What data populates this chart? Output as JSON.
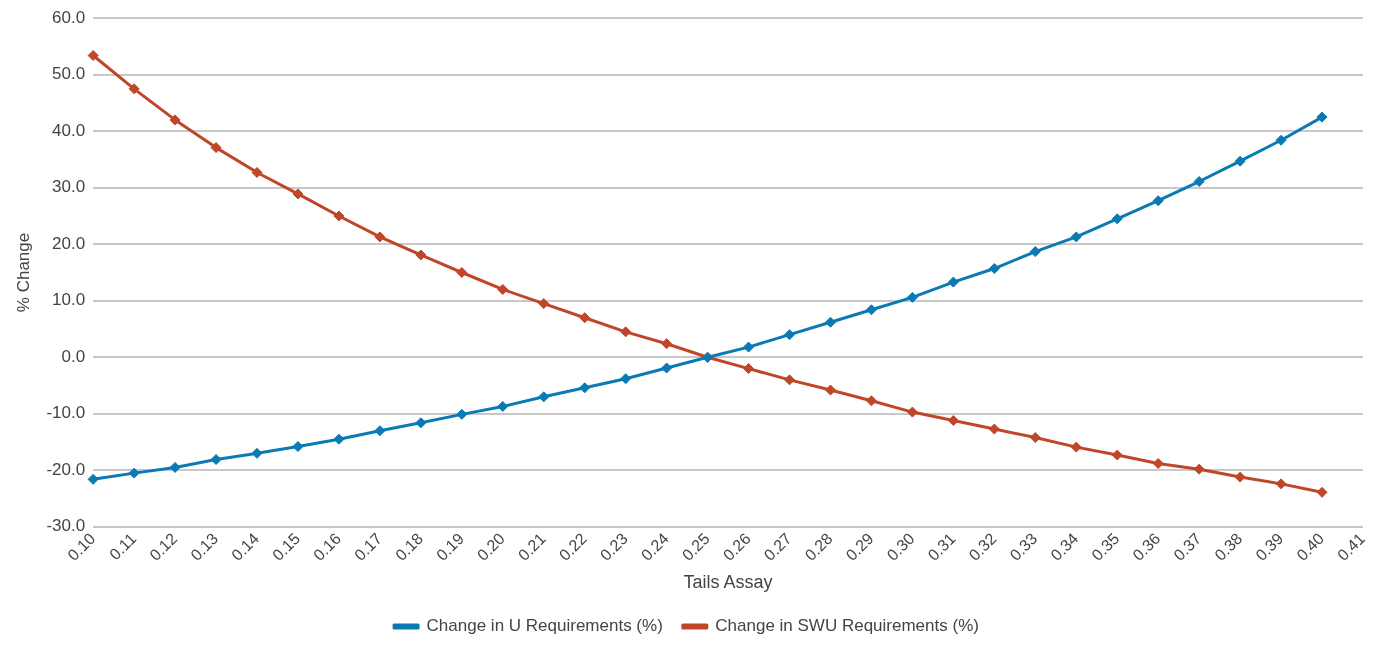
{
  "chart_data": {
    "type": "line",
    "xlabel": "Tails Assay",
    "ylabel": "% Change",
    "categories": [
      "0.10",
      "0.11",
      "0.12",
      "0.13",
      "0.14",
      "0.15",
      "0.16",
      "0.17",
      "0.18",
      "0.19",
      "0.20",
      "0.21",
      "0.22",
      "0.23",
      "0.24",
      "0.25",
      "0.26",
      "0.27",
      "0.28",
      "0.29",
      "0.30",
      "0.31",
      "0.32",
      "0.33",
      "0.34",
      "0.35",
      "0.36",
      "0.37",
      "0.38",
      "0.39",
      "0.40",
      "0.41"
    ],
    "series": [
      {
        "name": "Change in U Requirements (%)",
        "color": "#0a7ab5",
        "values": [
          -21.6,
          -20.5,
          -19.5,
          -18.1,
          -17.0,
          -15.8,
          -14.5,
          -13.0,
          -11.6,
          -10.1,
          -8.7,
          -7.0,
          -5.4,
          -3.8,
          -1.9,
          0.0,
          1.8,
          4.0,
          6.2,
          8.4,
          10.6,
          13.3,
          15.7,
          18.7,
          21.3,
          24.5,
          27.7,
          31.1,
          34.7,
          38.4,
          42.5,
          null
        ]
      },
      {
        "name": "Change in SWU Requirements (%)",
        "color": "#c0462a",
        "values": [
          53.4,
          47.5,
          42.0,
          37.1,
          32.7,
          28.9,
          25.0,
          21.3,
          18.1,
          15.0,
          12.0,
          9.5,
          7.0,
          4.5,
          2.4,
          0.0,
          -2.0,
          -4.0,
          -5.8,
          -7.7,
          -9.7,
          -11.2,
          -12.7,
          -14.2,
          -15.9,
          -17.3,
          -18.8,
          -19.8,
          -21.2,
          -22.4,
          -23.9,
          null
        ]
      }
    ],
    "ylim": [
      -30,
      60
    ],
    "yticks": [
      {
        "value": -30,
        "label": "-30.0"
      },
      {
        "value": -20,
        "label": "-20.0"
      },
      {
        "value": -10,
        "label": "-10.0"
      },
      {
        "value": 0,
        "label": "0.0"
      },
      {
        "value": 10,
        "label": "10.0"
      },
      {
        "value": 20,
        "label": "20.0"
      },
      {
        "value": 30,
        "label": "30.0"
      },
      {
        "value": 40,
        "label": "40.0"
      },
      {
        "value": 50,
        "label": "50.0"
      },
      {
        "value": 60,
        "label": "60.0"
      }
    ],
    "grid": "y",
    "legend": "bottom",
    "marker": "diamond",
    "line_style": "solid"
  }
}
